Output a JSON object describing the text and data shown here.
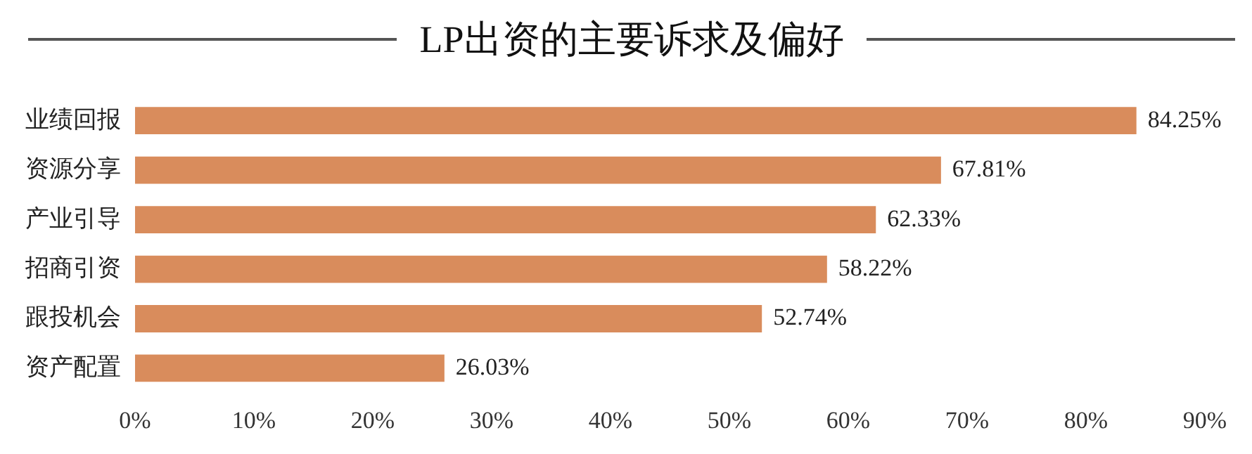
{
  "chart_data": {
    "type": "bar",
    "orientation": "horizontal",
    "title": "LP出资的主要诉求及偏好",
    "categories": [
      "业绩回报",
      "资源分享",
      "产业引导",
      "招商引资",
      "跟投机会",
      "资产配置"
    ],
    "values": [
      84.25,
      67.81,
      62.33,
      58.22,
      52.74,
      26.03
    ],
    "value_labels": [
      "84.25%",
      "67.81%",
      "62.33%",
      "58.22%",
      "52.74%",
      "26.03%"
    ],
    "color": "#d98c5c",
    "xlim": [
      0,
      90
    ],
    "xticks": [
      {
        "value": 0,
        "label": "0%"
      },
      {
        "value": 10,
        "label": "10%"
      },
      {
        "value": 20,
        "label": "20%"
      },
      {
        "value": 30,
        "label": "30%"
      },
      {
        "value": 40,
        "label": "40%"
      },
      {
        "value": 50,
        "label": "50%"
      },
      {
        "value": 60,
        "label": "60%"
      },
      {
        "value": 70,
        "label": "70%"
      },
      {
        "value": 80,
        "label": "80%"
      },
      {
        "value": 90,
        "label": "90%"
      }
    ],
    "grid": false,
    "legend": false
  }
}
